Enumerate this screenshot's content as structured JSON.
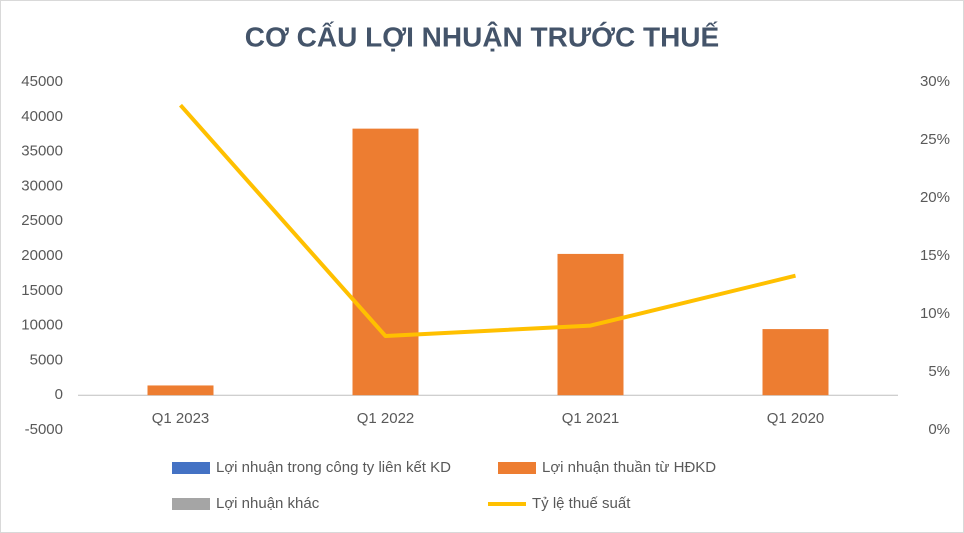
{
  "chart_data": {
    "type": "bar",
    "title": "CƠ CẤU LỢI NHUẬN TRƯỚC THUẾ",
    "categories": [
      "Q1 2023",
      "Q1 2022",
      "Q1 2021",
      "Q1 2020"
    ],
    "series": [
      {
        "name": "Lợi nhuận trong công ty liên kết KD",
        "type": "bar",
        "color": "#4472c4",
        "values": [
          0,
          0,
          0,
          0
        ]
      },
      {
        "name": "Lợi nhuận thuần từ HĐKD",
        "type": "bar",
        "color": "#ed7d31",
        "values": [
          1400,
          38300,
          20300,
          9500
        ]
      },
      {
        "name": "Lợi nhuận khác",
        "type": "bar",
        "color": "#a5a5a5",
        "values": [
          0,
          0,
          0,
          0
        ]
      },
      {
        "name": "Tỷ lệ thuế suất",
        "type": "line",
        "axis": "y2",
        "color": "#ffc000",
        "values": [
          28.0,
          8.1,
          9.0,
          13.3
        ]
      }
    ],
    "ylim": [
      -5000,
      45000
    ],
    "yticks": [
      -5000,
      0,
      5000,
      10000,
      15000,
      20000,
      25000,
      30000,
      35000,
      40000,
      45000
    ],
    "y2lim": [
      0,
      30
    ],
    "y2ticks": [
      {
        "value": 0,
        "label": "0%"
      },
      {
        "value": 5,
        "label": "5%"
      },
      {
        "value": 10,
        "label": "10%"
      },
      {
        "value": 15,
        "label": "15%"
      },
      {
        "value": 20,
        "label": "20%"
      },
      {
        "value": 25,
        "label": "25%"
      },
      {
        "value": 30,
        "label": "30%"
      }
    ],
    "grid": false,
    "stacked": true
  }
}
